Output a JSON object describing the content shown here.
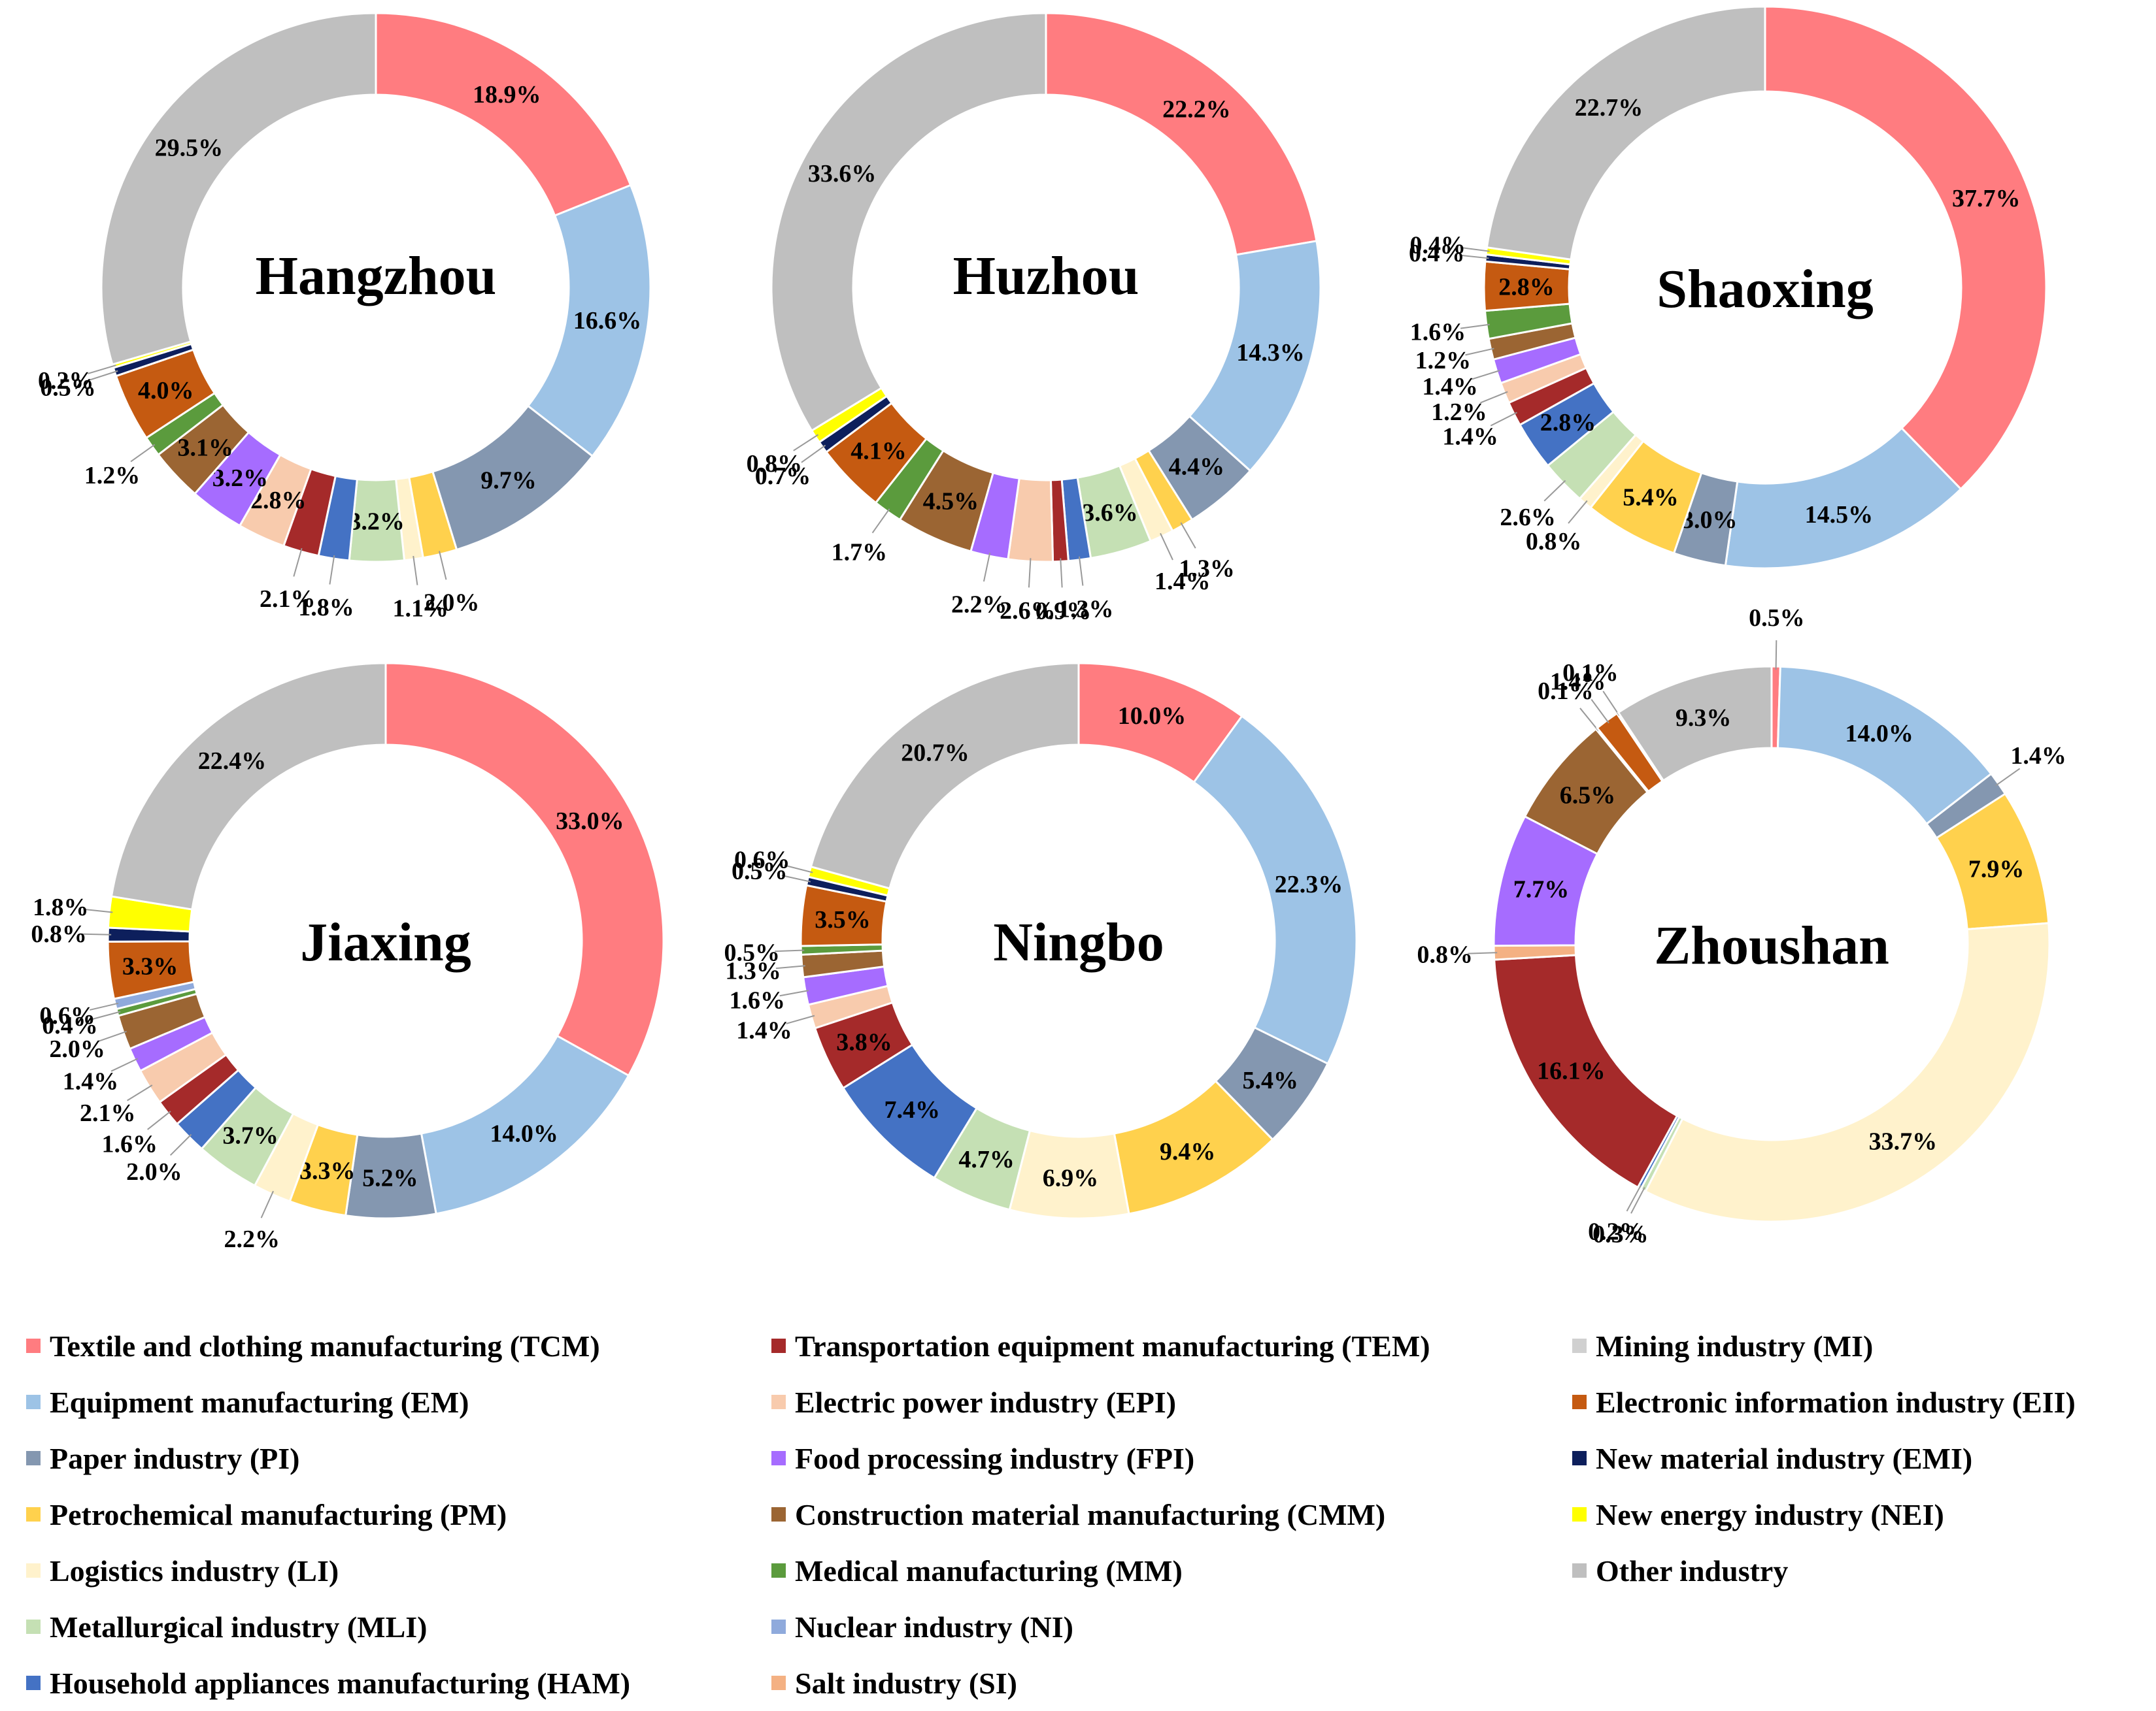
{
  "categories": {
    "TCM": {
      "label": "Textile and clothing manufacturing (TCM)",
      "color": "#FF7C80"
    },
    "EM": {
      "label": "Equipment manufacturing (EM)",
      "color": "#9DC3E6"
    },
    "PI": {
      "label": "Paper industry (PI)",
      "color": "#8497B0"
    },
    "PM": {
      "label": "Petrochemical manufacturing (PM)",
      "color": "#FFD14D"
    },
    "LI": {
      "label": "Logistics industry (LI)",
      "color": "#FFF2CC"
    },
    "MLI": {
      "label": "Metallurgical industry (MLI)",
      "color": "#C5E0B4"
    },
    "HAM": {
      "label": "Household appliances manufacturing (HAM)",
      "color": "#4472C4"
    },
    "TEM": {
      "label": "Transportation equipment manufacturing (TEM)",
      "color": "#A52A2A"
    },
    "EPI": {
      "label": "Electric power industry (EPI)",
      "color": "#F8CBAD"
    },
    "FPI": {
      "label": "Food processing industry (FPI)",
      "color": "#A66CFF"
    },
    "CMM": {
      "label": "Construction material manufacturing (CMM)",
      "color": "#9B6533"
    },
    "MM": {
      "label": "Medical manufacturing (MM)",
      "color": "#5B9B3D"
    },
    "NI": {
      "label": "Nuclear industry (NI)",
      "color": "#8FAADC"
    },
    "SI": {
      "label": "Salt industry (SI)",
      "color": "#F4B183"
    },
    "MI": {
      "label": "Mining industry (MI)",
      "color": "#D0D0D0"
    },
    "EII": {
      "label": "Electronic information industry (EII)",
      "color": "#C55A11"
    },
    "EMI": {
      "label": "New material industry (EMI)",
      "color": "#0D1F5C"
    },
    "NEI": {
      "label": "New energy industry (NEI)",
      "color": "#FFFF00"
    },
    "OI": {
      "label": "Other industry",
      "color": "#BFBFBF"
    }
  },
  "legend_order": [
    [
      "TCM",
      "EM",
      "PI",
      "PM",
      "LI",
      "MLI",
      "HAM"
    ],
    [
      "TEM",
      "EPI",
      "FPI",
      "CMM",
      "MM",
      "NI",
      "SI"
    ],
    [
      "MI",
      "EII",
      "EMI",
      "NEI",
      "OI"
    ]
  ],
  "chart_data": [
    {
      "type": "pie",
      "variant": "donut",
      "title": "Hangzhou",
      "slices": [
        {
          "key": "TCM",
          "value": 18.9,
          "label": "18.9%"
        },
        {
          "key": "EM",
          "value": 16.6,
          "label": "16.6%"
        },
        {
          "key": "PI",
          "value": 9.7,
          "label": "9.7%"
        },
        {
          "key": "PM",
          "value": 2.0,
          "label": "2.0%"
        },
        {
          "key": "LI",
          "value": 1.1,
          "label": "1.1%"
        },
        {
          "key": "MLI",
          "value": 3.2,
          "label": "3.2%"
        },
        {
          "key": "HAM",
          "value": 1.8,
          "label": "1.8%"
        },
        {
          "key": "TEM",
          "value": 2.1,
          "label": "2.1%"
        },
        {
          "key": "EPI",
          "value": 2.8,
          "label": "2.8%"
        },
        {
          "key": "FPI",
          "value": 3.2,
          "label": "3.2%"
        },
        {
          "key": "CMM",
          "value": 3.1,
          "label": "3.1%"
        },
        {
          "key": "MM",
          "value": 1.2,
          "label": "1.2%"
        },
        {
          "key": "EII",
          "value": 4.0,
          "label": "4.0%"
        },
        {
          "key": "EMI",
          "value": 0.5,
          "label": "0.5%"
        },
        {
          "key": "NEI",
          "value": 0.2,
          "label": "0.2%"
        },
        {
          "key": "OI",
          "value": 29.5,
          "label": "29.5%"
        }
      ]
    },
    {
      "type": "pie",
      "variant": "donut",
      "title": "Huzhou",
      "slices": [
        {
          "key": "TCM",
          "value": 22.2,
          "label": "22.2%"
        },
        {
          "key": "EM",
          "value": 14.3,
          "label": "14.3%"
        },
        {
          "key": "PI",
          "value": 4.4,
          "label": "4.4%"
        },
        {
          "key": "PM",
          "value": 1.3,
          "label": "1.3%"
        },
        {
          "key": "LI",
          "value": 1.4,
          "label": "1.4%"
        },
        {
          "key": "MLI",
          "value": 3.6,
          "label": "3.6%"
        },
        {
          "key": "HAM",
          "value": 1.3,
          "label": "1.3%"
        },
        {
          "key": "TEM",
          "value": 0.9,
          "label": "0.9%"
        },
        {
          "key": "EPI",
          "value": 2.6,
          "label": "2.6%"
        },
        {
          "key": "FPI",
          "value": 2.2,
          "label": "2.2%"
        },
        {
          "key": "CMM",
          "value": 4.5,
          "label": "4.5%"
        },
        {
          "key": "MM",
          "value": 1.7,
          "label": "1.7%"
        },
        {
          "key": "EII",
          "value": 4.1,
          "label": "4.1%"
        },
        {
          "key": "EMI",
          "value": 0.7,
          "label": "0.7%"
        },
        {
          "key": "NEI",
          "value": 0.8,
          "label": "0.8%"
        },
        {
          "key": "OI",
          "value": 33.6,
          "label": "33.6%"
        }
      ]
    },
    {
      "type": "pie",
      "variant": "donut",
      "title": "Shaoxing",
      "slices": [
        {
          "key": "TCM",
          "value": 37.7,
          "label": "37.7%"
        },
        {
          "key": "EM",
          "value": 14.5,
          "label": "14.5%"
        },
        {
          "key": "PI",
          "value": 3.0,
          "label": "3.0%"
        },
        {
          "key": "PM",
          "value": 5.4,
          "label": "5.4%"
        },
        {
          "key": "LI",
          "value": 0.8,
          "label": "0.8%"
        },
        {
          "key": "MLI",
          "value": 2.6,
          "label": "2.6%"
        },
        {
          "key": "HAM",
          "value": 2.8,
          "label": "2.8%"
        },
        {
          "key": "TEM",
          "value": 1.4,
          "label": "1.4%"
        },
        {
          "key": "EPI",
          "value": 1.2,
          "label": "1.2%"
        },
        {
          "key": "FPI",
          "value": 1.4,
          "label": "1.4%"
        },
        {
          "key": "CMM",
          "value": 1.2,
          "label": "1.2%"
        },
        {
          "key": "MM",
          "value": 1.6,
          "label": "1.6%"
        },
        {
          "key": "EII",
          "value": 2.8,
          "label": "2.8%"
        },
        {
          "key": "EMI",
          "value": 0.4,
          "label": "0.4%"
        },
        {
          "key": "NEI",
          "value": 0.4,
          "label": "0.4%"
        },
        {
          "key": "OI",
          "value": 22.7,
          "label": "22.7%"
        }
      ]
    },
    {
      "type": "pie",
      "variant": "donut",
      "title": "Jiaxing",
      "slices": [
        {
          "key": "TCM",
          "value": 33.0,
          "label": "33.0%"
        },
        {
          "key": "EM",
          "value": 14.0,
          "label": "14.0%"
        },
        {
          "key": "PI",
          "value": 5.2,
          "label": "5.2%"
        },
        {
          "key": "PM",
          "value": 3.3,
          "label": "3.3%"
        },
        {
          "key": "LI",
          "value": 2.2,
          "label": "2.2%"
        },
        {
          "key": "MLI",
          "value": 3.7,
          "label": "3.7%"
        },
        {
          "key": "HAM",
          "value": 2.0,
          "label": "2.0%"
        },
        {
          "key": "TEM",
          "value": 1.6,
          "label": "1.6%"
        },
        {
          "key": "EPI",
          "value": 2.1,
          "label": "2.1%"
        },
        {
          "key": "FPI",
          "value": 1.4,
          "label": "1.4%"
        },
        {
          "key": "CMM",
          "value": 2.0,
          "label": "2.0%"
        },
        {
          "key": "MM",
          "value": 0.4,
          "label": "0.4%"
        },
        {
          "key": "NI",
          "value": 0.6,
          "label": "0.6%"
        },
        {
          "key": "EII",
          "value": 3.3,
          "label": "3.3%"
        },
        {
          "key": "EMI",
          "value": 0.8,
          "label": "0.8%"
        },
        {
          "key": "NEI",
          "value": 1.8,
          "label": "1.8%"
        },
        {
          "key": "OI",
          "value": 22.4,
          "label": "22.4%"
        }
      ]
    },
    {
      "type": "pie",
      "variant": "donut",
      "title": "Ningbo",
      "slices": [
        {
          "key": "TCM",
          "value": 10.0,
          "label": "10.0%"
        },
        {
          "key": "EM",
          "value": 22.3,
          "label": "22.3%"
        },
        {
          "key": "PI",
          "value": 5.4,
          "label": "5.4%"
        },
        {
          "key": "PM",
          "value": 9.4,
          "label": "9.4%"
        },
        {
          "key": "LI",
          "value": 6.9,
          "label": "6.9%"
        },
        {
          "key": "MLI",
          "value": 4.7,
          "label": "4.7%"
        },
        {
          "key": "HAM",
          "value": 7.4,
          "label": "7.4%"
        },
        {
          "key": "TEM",
          "value": 3.8,
          "label": "3.8%"
        },
        {
          "key": "EPI",
          "value": 1.4,
          "label": "1.4%"
        },
        {
          "key": "FPI",
          "value": 1.6,
          "label": "1.6%"
        },
        {
          "key": "CMM",
          "value": 1.3,
          "label": "1.3%"
        },
        {
          "key": "MM",
          "value": 0.5,
          "label": "0.5%"
        },
        {
          "key": "EII",
          "value": 3.5,
          "label": "3.5%"
        },
        {
          "key": "EMI",
          "value": 0.5,
          "label": "0.5%"
        },
        {
          "key": "NEI",
          "value": 0.6,
          "label": "0.6%"
        },
        {
          "key": "OI",
          "value": 20.7,
          "label": "20.7%"
        }
      ]
    },
    {
      "type": "pie",
      "variant": "donut",
      "title": "Zhoushan",
      "slices": [
        {
          "key": "TCM",
          "value": 0.5,
          "label": "0.5%"
        },
        {
          "key": "EM",
          "value": 14.0,
          "label": "14.0%"
        },
        {
          "key": "PI",
          "value": 1.4,
          "label": "1.4%"
        },
        {
          "key": "PM",
          "value": 7.9,
          "label": "7.9%"
        },
        {
          "key": "LI",
          "value": 33.7,
          "label": "33.7%"
        },
        {
          "key": "MLI",
          "value": 0.3,
          "label": "0.3%"
        },
        {
          "key": "HAM",
          "value": 0.2,
          "label": "0.2%"
        },
        {
          "key": "TEM",
          "value": 16.1,
          "label": "16.1%"
        },
        {
          "key": "SI",
          "value": 0.8,
          "label": "0.8%"
        },
        {
          "key": "FPI",
          "value": 7.7,
          "label": "7.7%"
        },
        {
          "key": "CMM",
          "value": 6.5,
          "label": "6.5%"
        },
        {
          "key": "MM",
          "value": 0.1,
          "label": "0.1%"
        },
        {
          "key": "EII",
          "value": 1.4,
          "label": "1.4%"
        },
        {
          "key": "EMI",
          "value": 0.1,
          "label": "0.1%"
        },
        {
          "key": "OI",
          "value": 9.3,
          "label": "9.3%"
        }
      ]
    }
  ]
}
